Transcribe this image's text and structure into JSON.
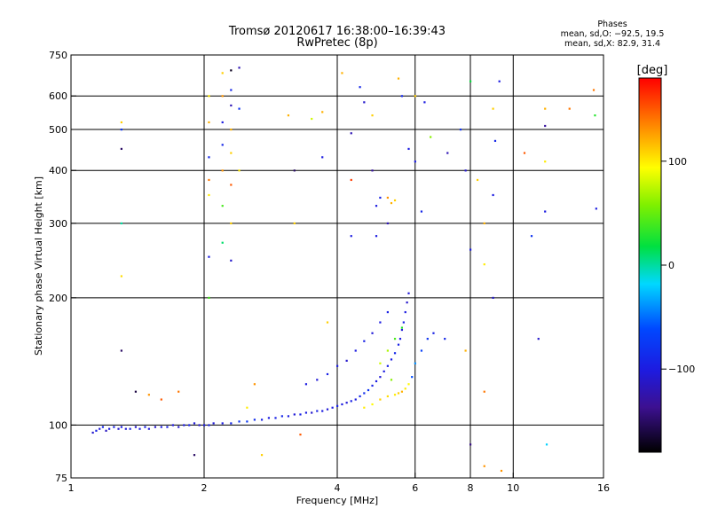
{
  "header": {
    "title_line1": "Tromsø 20120617 16:38:00–16:39:43",
    "title_line2": "RwPretec (8p)"
  },
  "phases": {
    "heading": "Phases",
    "line_o": "mean, sd,O: −92.5, 19.5",
    "line_x": "mean, sd,X:  82.9, 31.4"
  },
  "colorbar": {
    "label": "[deg]",
    "min": -180,
    "max": 180,
    "ticks": [
      {
        "value": 100,
        "label": "100"
      },
      {
        "value": 0,
        "label": "0"
      },
      {
        "value": -100,
        "label": "−100"
      }
    ]
  },
  "chart_data": {
    "type": "scatter",
    "xlabel": "Frequency [MHz]",
    "ylabel": "Stationary phase Virtual Height [km]",
    "xscale": "log",
    "yscale": "log",
    "xlim": [
      1,
      16
    ],
    "ylim": [
      75,
      750
    ],
    "xticks": [
      {
        "value": 1,
        "label": "1"
      },
      {
        "value": 2,
        "label": "2"
      },
      {
        "value": 4,
        "label": "4"
      },
      {
        "value": 6,
        "label": "6"
      },
      {
        "value": 8,
        "label": "8"
      },
      {
        "value": 10,
        "label": "10"
      },
      {
        "value": 16,
        "label": "16"
      }
    ],
    "yticks": [
      {
        "value": 75,
        "label": "75"
      },
      {
        "value": 100,
        "label": "100"
      },
      {
        "value": 200,
        "label": "200"
      },
      {
        "value": 300,
        "label": "300"
      },
      {
        "value": 400,
        "label": "400"
      },
      {
        "value": 500,
        "label": "500"
      },
      {
        "value": 600,
        "label": "600"
      },
      {
        "value": 750,
        "label": "750"
      }
    ],
    "grid_x": [
      2,
      4,
      6,
      8,
      10
    ],
    "grid_y": [
      100,
      200,
      300,
      400,
      500,
      600
    ],
    "color_by": "phase [deg]",
    "points": [
      [
        1.12,
        96,
        -110
      ],
      [
        1.14,
        97,
        -95
      ],
      [
        1.16,
        98,
        -105
      ],
      [
        1.18,
        99,
        -90
      ],
      [
        1.2,
        97,
        -115
      ],
      [
        1.22,
        98,
        -100
      ],
      [
        1.25,
        99,
        -95
      ],
      [
        1.28,
        98,
        -110
      ],
      [
        1.3,
        99,
        -100
      ],
      [
        1.33,
        98,
        -105
      ],
      [
        1.36,
        98,
        -95
      ],
      [
        1.4,
        99,
        -110
      ],
      [
        1.43,
        98,
        -100
      ],
      [
        1.47,
        99,
        -95
      ],
      [
        1.5,
        98,
        -105
      ],
      [
        1.55,
        99,
        -110
      ],
      [
        1.6,
        99,
        -100
      ],
      [
        1.65,
        99,
        -95
      ],
      [
        1.7,
        100,
        -105
      ],
      [
        1.75,
        99,
        -110
      ],
      [
        1.8,
        100,
        -100
      ],
      [
        1.85,
        100,
        -95
      ],
      [
        1.9,
        101,
        -105
      ],
      [
        1.95,
        100,
        -110
      ],
      [
        2.0,
        100,
        -100
      ],
      [
        2.05,
        100,
        -95
      ],
      [
        2.1,
        101,
        -105
      ],
      [
        2.2,
        101,
        -100
      ],
      [
        2.3,
        101,
        -90
      ],
      [
        2.4,
        102,
        -80
      ],
      [
        2.5,
        102,
        -75
      ],
      [
        2.6,
        103,
        -85
      ],
      [
        2.7,
        103,
        -95
      ],
      [
        2.8,
        104,
        -100
      ],
      [
        2.9,
        104,
        -95
      ],
      [
        3.0,
        105,
        -90
      ],
      [
        3.1,
        105,
        -100
      ],
      [
        3.2,
        106,
        -105
      ],
      [
        3.3,
        106,
        -95
      ],
      [
        3.4,
        107,
        -100
      ],
      [
        3.5,
        107,
        -110
      ],
      [
        3.6,
        108,
        -95
      ],
      [
        3.7,
        108,
        -100
      ],
      [
        3.8,
        109,
        -105
      ],
      [
        3.9,
        110,
        -100
      ],
      [
        4.0,
        111,
        -95
      ],
      [
        4.1,
        112,
        -100
      ],
      [
        4.2,
        113,
        -105
      ],
      [
        4.3,
        114,
        -95
      ],
      [
        4.4,
        115,
        -100
      ],
      [
        4.5,
        117,
        -90
      ],
      [
        4.6,
        119,
        -85
      ],
      [
        4.7,
        121,
        -80
      ],
      [
        4.8,
        124,
        -95
      ],
      [
        4.9,
        127,
        -100
      ],
      [
        5.0,
        130,
        -105
      ],
      [
        5.1,
        134,
        -100
      ],
      [
        5.2,
        138,
        -95
      ],
      [
        5.3,
        143,
        -100
      ],
      [
        5.4,
        148,
        -90
      ],
      [
        5.5,
        155,
        -95
      ],
      [
        5.55,
        160,
        -100
      ],
      [
        5.6,
        168,
        -105
      ],
      [
        5.65,
        175,
        -95
      ],
      [
        5.7,
        185,
        -100
      ],
      [
        5.75,
        195,
        -110
      ],
      [
        5.8,
        205,
        -105
      ],
      [
        3.4,
        125,
        -100
      ],
      [
        3.6,
        128,
        -105
      ],
      [
        3.8,
        132,
        -95
      ],
      [
        4.0,
        138,
        -100
      ],
      [
        4.2,
        142,
        -110
      ],
      [
        4.4,
        150,
        -100
      ],
      [
        4.6,
        158,
        -95
      ],
      [
        4.8,
        165,
        -105
      ],
      [
        5.0,
        175,
        -100
      ],
      [
        5.2,
        185,
        -95
      ],
      [
        4.6,
        110,
        100
      ],
      [
        4.8,
        112,
        95
      ],
      [
        5.0,
        115,
        110
      ],
      [
        5.2,
        117,
        105
      ],
      [
        5.4,
        118,
        100
      ],
      [
        5.5,
        119,
        110
      ],
      [
        5.6,
        120,
        120
      ],
      [
        5.7,
        122,
        100
      ],
      [
        5.8,
        125,
        95
      ],
      [
        5.3,
        128,
        60
      ],
      [
        5.0,
        140,
        80
      ],
      [
        5.2,
        150,
        70
      ],
      [
        5.4,
        160,
        40
      ],
      [
        5.6,
        170,
        30
      ],
      [
        5.9,
        130,
        -60
      ],
      [
        6.0,
        140,
        -40
      ],
      [
        6.2,
        150,
        -70
      ],
      [
        6.4,
        160,
        -80
      ],
      [
        6.6,
        165,
        -95
      ],
      [
        7.0,
        160,
        -90
      ],
      [
        5.3,
        335,
        120
      ],
      [
        5.4,
        340,
        110
      ],
      [
        5.2,
        345,
        130
      ],
      [
        4.9,
        330,
        -100
      ],
      [
        5.0,
        345,
        -95
      ],
      [
        1.3,
        450,
        -150
      ],
      [
        1.3,
        500,
        -80
      ],
      [
        1.3,
        520,
        110
      ],
      [
        1.3,
        300,
        0
      ],
      [
        1.3,
        225,
        105
      ],
      [
        1.3,
        150,
        -150
      ],
      [
        1.4,
        120,
        -160
      ],
      [
        1.5,
        118,
        130
      ],
      [
        1.6,
        115,
        150
      ],
      [
        1.75,
        120,
        140
      ],
      [
        1.9,
        85,
        -150
      ],
      [
        2.05,
        600,
        100
      ],
      [
        2.05,
        520,
        120
      ],
      [
        2.05,
        430,
        -90
      ],
      [
        2.05,
        380,
        140
      ],
      [
        2.05,
        350,
        100
      ],
      [
        2.05,
        250,
        -100
      ],
      [
        2.05,
        200,
        40
      ],
      [
        2.2,
        680,
        110
      ],
      [
        2.2,
        600,
        130
      ],
      [
        2.2,
        520,
        -100
      ],
      [
        2.2,
        460,
        -90
      ],
      [
        2.2,
        400,
        130
      ],
      [
        2.2,
        330,
        40
      ],
      [
        2.2,
        270,
        10
      ],
      [
        2.3,
        690,
        -170
      ],
      [
        2.3,
        620,
        -90
      ],
      [
        2.3,
        570,
        -120
      ],
      [
        2.3,
        500,
        120
      ],
      [
        2.3,
        440,
        110
      ],
      [
        2.3,
        370,
        150
      ],
      [
        2.3,
        300,
        110
      ],
      [
        2.3,
        245,
        -110
      ],
      [
        2.4,
        700,
        -120
      ],
      [
        2.4,
        560,
        -80
      ],
      [
        2.4,
        400,
        100
      ],
      [
        2.5,
        110,
        100
      ],
      [
        2.6,
        125,
        130
      ],
      [
        2.7,
        85,
        110
      ],
      [
        3.1,
        540,
        120
      ],
      [
        3.2,
        400,
        -150
      ],
      [
        3.2,
        300,
        110
      ],
      [
        3.3,
        95,
        150
      ],
      [
        3.5,
        530,
        80
      ],
      [
        3.7,
        550,
        120
      ],
      [
        3.7,
        430,
        -100
      ],
      [
        3.8,
        175,
        110
      ],
      [
        4.1,
        680,
        120
      ],
      [
        4.3,
        490,
        -120
      ],
      [
        4.3,
        380,
        160
      ],
      [
        4.3,
        280,
        -100
      ],
      [
        4.5,
        630,
        -90
      ],
      [
        4.6,
        580,
        -110
      ],
      [
        4.8,
        540,
        110
      ],
      [
        4.8,
        400,
        -130
      ],
      [
        4.9,
        280,
        -100
      ],
      [
        5.2,
        300,
        -120
      ],
      [
        5.5,
        660,
        120
      ],
      [
        5.6,
        600,
        -90
      ],
      [
        5.8,
        450,
        -100
      ],
      [
        6.0,
        600,
        110
      ],
      [
        6.0,
        420,
        -100
      ],
      [
        6.2,
        320,
        -90
      ],
      [
        6.3,
        580,
        -100
      ],
      [
        6.5,
        480,
        60
      ],
      [
        7.1,
        440,
        -120
      ],
      [
        7.6,
        500,
        -80
      ],
      [
        7.8,
        400,
        -110
      ],
      [
        7.8,
        150,
        120
      ],
      [
        8.0,
        650,
        20
      ],
      [
        8.0,
        260,
        -100
      ],
      [
        8.0,
        90,
        -140
      ],
      [
        8.3,
        380,
        110
      ],
      [
        8.6,
        300,
        120
      ],
      [
        8.6,
        240,
        100
      ],
      [
        8.6,
        120,
        140
      ],
      [
        8.6,
        80,
        130
      ],
      [
        9.0,
        560,
        110
      ],
      [
        9.0,
        350,
        -100
      ],
      [
        9.0,
        200,
        -110
      ],
      [
        9.1,
        470,
        -90
      ],
      [
        9.3,
        650,
        -100
      ],
      [
        9.4,
        78,
        130
      ],
      [
        10.6,
        440,
        150
      ],
      [
        11.0,
        280,
        -80
      ],
      [
        11.4,
        160,
        -110
      ],
      [
        11.8,
        560,
        120
      ],
      [
        11.8,
        510,
        -130
      ],
      [
        11.8,
        420,
        100
      ],
      [
        11.8,
        320,
        -100
      ],
      [
        11.9,
        90,
        -20
      ],
      [
        13.4,
        560,
        140
      ],
      [
        15.2,
        620,
        140
      ],
      [
        15.3,
        540,
        30
      ],
      [
        15.4,
        325,
        -100
      ]
    ]
  }
}
